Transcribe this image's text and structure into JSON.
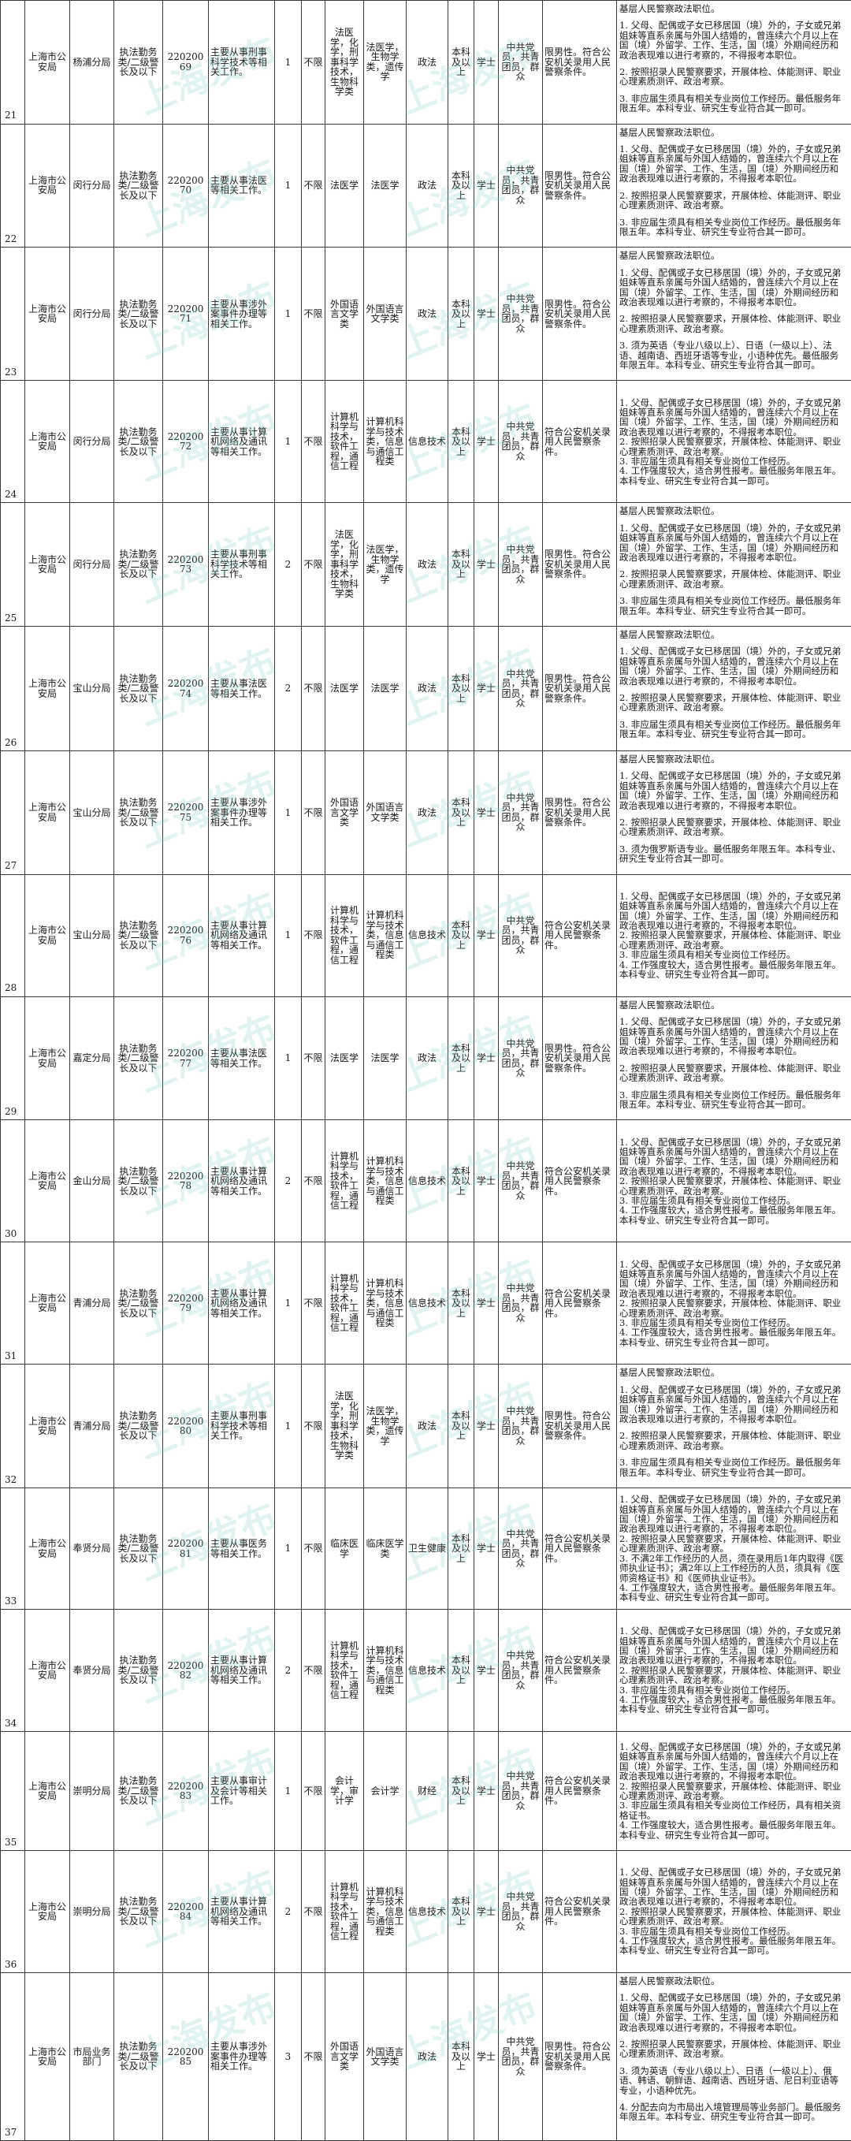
{
  "watermark": "上海发布",
  "rows": [
    {
      "no": "21",
      "agency": "上海市公安局",
      "unit": "杨浦分局",
      "category": "执法勤务类/二级警长及以下",
      "code": "22020069",
      "duty": "主要从事刑事科学技术等相关工作。",
      "count": "1",
      "limit": "不限",
      "major_ug": "法医学，化学，刑事科学技术，生物科学类",
      "major_pg": "法医学，生物学类，遗传学",
      "exam": "政法",
      "edu": "本科及以上",
      "degree": "学士",
      "politics": "中共党员，共青团员，群众",
      "other": "限男性。符合公安机关录用人民警察条件。",
      "notes": [
        "基层人民警察政法职位。",
        "1. 父母、配偶或子女已移居国（境）外的，子女或兄弟姐妹等直系亲属与外国人结婚的，曾连续六个月以上在国（境）外留学、工作、生活，国（境）外期间经历和政治表现难以进行考察的，不得报考本职位。",
        "2. 按照招录人民警察要求，开展体检、体能测评、职业心理素质测评、政治考察。",
        "3. 非应届生须具有相关专业岗位工作经历。最低服务年限五年。本科专业、研究生专业符合其一即可。"
      ]
    },
    {
      "no": "22",
      "agency": "上海市公安局",
      "unit": "闵行分局",
      "category": "执法勤务类/二级警长及以下",
      "code": "22020070",
      "duty": "主要从事法医等相关工作。",
      "count": "1",
      "limit": "不限",
      "major_ug": "法医学",
      "major_pg": "法医学",
      "exam": "政法",
      "edu": "本科及以上",
      "degree": "学士",
      "politics": "中共党员，共青团员，群众",
      "other": "限男性。符合公安机关录用人民警察条件。",
      "notes": [
        "基层人民警察政法职位。",
        "1. 父母、配偶或子女已移居国（境）外的，子女或兄弟姐妹等直系亲属与外国人结婚的，曾连续六个月以上在国（境）外留学、工作、生活，国（境）外期间经历和政治表现难以进行考察的，不得报考本职位。",
        "2. 按照招录人民警察要求，开展体检、体能测评、职业心理素质测评、政治考察。",
        "3. 非应届生须具有相关专业岗位工作经历。最低服务年限五年。本科专业、研究生专业符合其一即可。"
      ]
    },
    {
      "no": "23",
      "agency": "上海市公安局",
      "unit": "闵行分局",
      "category": "执法勤务类/二级警长及以下",
      "code": "22020071",
      "duty": "主要从事涉外案事件办理等相关工作。",
      "count": "1",
      "limit": "不限",
      "major_ug": "外国语言文学类",
      "major_pg": "外国语言文学类",
      "exam": "政法",
      "edu": "本科及以上",
      "degree": "学士",
      "politics": "中共党员，共青团员，群众",
      "other": "限男性。符合公安机关录用人民警察条件。",
      "notes": [
        "基层人民警察政法职位。",
        "1. 父母、配偶或子女已移居国（境）外的，子女或兄弟姐妹等直系亲属与外国人结婚的，曾连续六个月以上在国（境）外留学、工作、生活，国（境）外期间经历和政治表现难以进行考察的，不得报考本职位。",
        "2. 按照招录人民警察要求，开展体检、体能测评、职业心理素质测评、政治考察。",
        "3. 须为英语（专业八级以上）、日语（一级以上）、法语、越南语、西班牙语等专业，小语种优先。最低服务年限五年。本科专业、研究生专业符合其一即可。"
      ]
    },
    {
      "no": "24",
      "agency": "上海市公安局",
      "unit": "闵行分局",
      "category": "执法勤务类/二级警长及以下",
      "code": "22020072",
      "duty": "主要从事计算机网络及通讯等相关工作。",
      "count": "1",
      "limit": "不限",
      "major_ug": "计算机科学与技术，软件工程，通信工程",
      "major_pg": "计算机科学与技术类，信息与通信工程类",
      "exam": "信息技术",
      "edu": "本科及以上",
      "degree": "学士",
      "politics": "中共党员，共青团员，群众",
      "other": "符合公安机关录用人民警察条件。",
      "notes": [
        "1. 父母、配偶或子女已移居国（境）外的，子女或兄弟姐妹等直系亲属与外国人结婚的，曾连续六个月以上在国（境）外留学、工作、生活，国（境）外期间经历和政治表现难以进行考察的，不得报考本职位。",
        "2. 按照招录人民警察要求，开展体检、体能测评、职业心理素质测评、政治考察。",
        "3. 非应届生须具有相关专业岗位工作经历。",
        "4. 工作强度较大，适合男性报考。最低服务年限五年。本科专业、研究生专业符合其一即可。"
      ]
    },
    {
      "no": "25",
      "agency": "上海市公安局",
      "unit": "闵行分局",
      "category": "执法勤务类/二级警长及以下",
      "code": "22020073",
      "duty": "主要从事刑事科学技术等相关工作。",
      "count": "2",
      "limit": "不限",
      "major_ug": "法医学，化学，刑事科学技术，生物科学类",
      "major_pg": "法医学，生物学类，遗传学",
      "exam": "政法",
      "edu": "本科及以上",
      "degree": "学士",
      "politics": "中共党员，共青团员，群众",
      "other": "限男性。符合公安机关录用人民警察条件。",
      "notes": [
        "基层人民警察政法职位。",
        "1. 父母、配偶或子女已移居国（境）外的，子女或兄弟姐妹等直系亲属与外国人结婚的，曾连续六个月以上在国（境）外留学、工作、生活，国（境）外期间经历和政治表现难以进行考察的，不得报考本职位。",
        "2. 按照招录人民警察要求，开展体检、体能测评、职业心理素质测评、政治考察。",
        "3. 非应届生须具有相关专业岗位工作经历。最低服务年限五年。本科专业、研究生专业符合其一即可。"
      ]
    },
    {
      "no": "26",
      "agency": "上海市公安局",
      "unit": "宝山分局",
      "category": "执法勤务类/二级警长及以下",
      "code": "22020074",
      "duty": "主要从事法医等相关工作。",
      "count": "2",
      "limit": "不限",
      "major_ug": "法医学",
      "major_pg": "法医学",
      "exam": "政法",
      "edu": "本科及以上",
      "degree": "学士",
      "politics": "中共党员，共青团员，群众",
      "other": "限男性。符合公安机关录用人民警察条件。",
      "notes": [
        "基层人民警察政法职位。",
        "1. 父母、配偶或子女已移居国（境）外的，子女或兄弟姐妹等直系亲属与外国人结婚的，曾连续六个月以上在国（境）外留学、工作、生活，国（境）外期间经历和政治表现难以进行考察的，不得报考本职位。",
        "2. 按照招录人民警察要求，开展体检、体能测评、职业心理素质测评、政治考察。",
        "3. 非应届生须具有相关专业岗位工作经历。最低服务年限五年。本科专业、研究生专业符合其一即可。"
      ]
    },
    {
      "no": "27",
      "agency": "上海市公安局",
      "unit": "宝山分局",
      "category": "执法勤务类/二级警长及以下",
      "code": "22020075",
      "duty": "主要从事涉外案事件办理等相关工作。",
      "count": "1",
      "limit": "不限",
      "major_ug": "外国语言文学类",
      "major_pg": "外国语言文学类",
      "exam": "政法",
      "edu": "本科及以上",
      "degree": "学士",
      "politics": "中共党员，共青团员，群众",
      "other": "限男性。符合公安机关录用人民警察条件。",
      "notes": [
        "基层人民警察政法职位。",
        "1. 父母、配偶或子女已移居国（境）外的，子女或兄弟姐妹等直系亲属与外国人结婚的，曾连续六个月以上在国（境）外留学、工作、生活，国（境）外期间经历和政治表现难以进行考察的，不得报考本职位。",
        "2. 按照招录人民警察要求，开展体检、体能测评、职业心理素质测评、政治考察。",
        "3. 须为俄罗斯语专业。最低服务年限五年。本科专业、研究生专业符合其一即可。"
      ]
    },
    {
      "no": "28",
      "agency": "上海市公安局",
      "unit": "宝山分局",
      "category": "执法勤务类/二级警长及以下",
      "code": "22020076",
      "duty": "主要从事计算机网络及通讯等相关工作。",
      "count": "1",
      "limit": "不限",
      "major_ug": "计算机科学与技术，软件工程，通信工程",
      "major_pg": "计算机科学与技术类，信息与通信工程类",
      "exam": "信息技术",
      "edu": "本科及以上",
      "degree": "学士",
      "politics": "中共党员，共青团员，群众",
      "other": "符合公安机关录用人民警察条件。",
      "notes": [
        "1. 父母、配偶或子女已移居国（境）外的，子女或兄弟姐妹等直系亲属与外国人结婚的，曾连续六个月以上在国（境）外留学、工作、生活，国（境）外期间经历和政治表现难以进行考察的，不得报考本职位。",
        "2. 按照招录人民警察要求，开展体检、体能测评、职业心理素质测评、政治考察。",
        "3. 非应届生须具有相关专业岗位工作经历。",
        "4. 工作强度较大，适合男性报考。最低服务年限五年。本科专业、研究生专业符合其一即可。"
      ]
    },
    {
      "no": "29",
      "agency": "上海市公安局",
      "unit": "嘉定分局",
      "category": "执法勤务类/二级警长及以下",
      "code": "22020077",
      "duty": "主要从事法医等相关工作。",
      "count": "1",
      "limit": "不限",
      "major_ug": "法医学",
      "major_pg": "法医学",
      "exam": "政法",
      "edu": "本科及以上",
      "degree": "学士",
      "politics": "中共党员，共青团员，群众",
      "other": "限男性。符合公安机关录用人民警察条件。",
      "notes": [
        "基层人民警察政法职位。",
        "1. 父母、配偶或子女已移居国（境）外的，子女或兄弟姐妹等直系亲属与外国人结婚的，曾连续六个月以上在国（境）外留学、工作、生活，国（境）外期间经历和政治表现难以进行考察的，不得报考本职位。",
        "2. 按照招录人民警察要求，开展体检、体能测评、职业心理素质测评、政治考察。",
        "3. 非应届生须具有相关专业岗位工作经历。最低服务年限五年。本科专业、研究生专业符合其一即可。"
      ]
    },
    {
      "no": "30",
      "agency": "上海市公安局",
      "unit": "金山分局",
      "category": "执法勤务类/二级警长及以下",
      "code": "22020078",
      "duty": "主要从事计算机网络及通讯等相关工作。",
      "count": "2",
      "limit": "不限",
      "major_ug": "计算机科学与技术，软件工程，通信工程",
      "major_pg": "计算机科学与技术类，信息与通信工程类",
      "exam": "信息技术",
      "edu": "本科及以上",
      "degree": "学士",
      "politics": "中共党员，共青团员，群众",
      "other": "符合公安机关录用人民警察条件。",
      "notes": [
        "1. 父母、配偶或子女已移居国（境）外的，子女或兄弟姐妹等直系亲属与外国人结婚的，曾连续六个月以上在国（境）外留学、工作、生活，国（境）外期间经历和政治表现难以进行考察的，不得报考本职位。",
        "2. 按照招录人民警察要求，开展体检、体能测评、职业心理素质测评、政治考察。",
        "3. 非应届生须具有相关专业岗位工作经历。",
        "4. 工作强度较大，适合男性报考。最低服务年限五年。本科专业、研究生专业符合其一即可。"
      ]
    },
    {
      "no": "31",
      "agency": "上海市公安局",
      "unit": "青浦分局",
      "category": "执法勤务类/二级警长及以下",
      "code": "22020079",
      "duty": "主要从事计算机网络及通讯等相关工作。",
      "count": "1",
      "limit": "不限",
      "major_ug": "计算机科学与技术，软件工程，通信工程",
      "major_pg": "计算机科学与技术类，信息与通信工程类",
      "exam": "信息技术",
      "edu": "本科及以上",
      "degree": "学士",
      "politics": "中共党员，共青团员，群众",
      "other": "符合公安机关录用人民警察条件。",
      "notes": [
        "1. 父母、配偶或子女已移居国（境）外的，子女或兄弟姐妹等直系亲属与外国人结婚的，曾连续六个月以上在国（境）外留学、工作、生活，国（境）外期间经历和政治表现难以进行考察的，不得报考本职位。",
        "2. 按照招录人民警察要求，开展体检、体能测评、职业心理素质测评、政治考察。",
        "3. 非应届生须具有相关专业岗位工作经历。",
        "4. 工作强度较大，适合男性报考。最低服务年限五年。本科专业、研究生专业符合其一即可。"
      ]
    },
    {
      "no": "32",
      "agency": "上海市公安局",
      "unit": "青浦分局",
      "category": "执法勤务类/二级警长及以下",
      "code": "22020080",
      "duty": "主要从事刑事科学技术等相关工作。",
      "count": "1",
      "limit": "不限",
      "major_ug": "法医学，化学，刑事科学技术，生物科学类",
      "major_pg": "法医学，生物学类，遗传学",
      "exam": "政法",
      "edu": "本科及以上",
      "degree": "学士",
      "politics": "中共党员，共青团员，群众",
      "other": "限男性。符合公安机关录用人民警察条件。",
      "notes": [
        "基层人民警察政法职位。",
        "1. 父母、配偶或子女已移居国（境）外的，子女或兄弟姐妹等直系亲属与外国人结婚的，曾连续六个月以上在国（境）外留学、工作、生活，国（境）外期间经历和政治表现难以进行考察的，不得报考本职位。",
        "2. 按照招录人民警察要求，开展体检、体能测评、职业心理素质测评、政治考察。",
        "3. 非应届生须具有相关专业岗位工作经历。最低服务年限五年。本科专业、研究生专业符合其一即可。"
      ]
    },
    {
      "no": "33",
      "agency": "上海市公安局",
      "unit": "奉贤分局",
      "category": "执法勤务类/二级警长及以下",
      "code": "22020081",
      "duty": "主要从事医务等相关工作。",
      "count": "1",
      "limit": "不限",
      "major_ug": "临床医学",
      "major_pg": "临床医学类",
      "exam": "卫生健康",
      "edu": "本科及以上",
      "degree": "学士",
      "politics": "中共党员，共青团员，群众",
      "other": "符合公安机关录用人民警察条件。",
      "notes": [
        "1. 父母、配偶或子女已移居国（境）外的，子女或兄弟姐妹等直系亲属与外国人结婚的，曾连续六个月以上在国（境）外留学、工作、生活，国（境）外期间经历和政治表现难以进行考察的，不得报考本职位。",
        "2. 按照招录人民警察要求，开展体检、体能测评、职业心理素质测评、政治考察。",
        "3. 不满2年工作经历的人员，须在录用后1年内取得《医师执业证书》；满2年以上工作经历的人员，须具有《医师资格证书》和《医师执业证书》。",
        "4. 工作强度较大，适合男性报考。最低服务年限五年。本科专业、研究生专业符合其一即可。"
      ]
    },
    {
      "no": "34",
      "agency": "上海市公安局",
      "unit": "奉贤分局",
      "category": "执法勤务类/二级警长及以下",
      "code": "22020082",
      "duty": "主要从事计算机网络及通讯等相关工作。",
      "count": "2",
      "limit": "不限",
      "major_ug": "计算机科学与技术，软件工程，通信工程",
      "major_pg": "计算机科学与技术类，信息与通信工程类",
      "exam": "信息技术",
      "edu": "本科及以上",
      "degree": "学士",
      "politics": "中共党员，共青团员，群众",
      "other": "符合公安机关录用人民警察条件。",
      "notes": [
        "1. 父母、配偶或子女已移居国（境）外的，子女或兄弟姐妹等直系亲属与外国人结婚的，曾连续六个月以上在国（境）外留学、工作、生活，国（境）外期间经历和政治表现难以进行考察的，不得报考本职位。",
        "2. 按照招录人民警察要求，开展体检、体能测评、职业心理素质测评、政治考察。",
        "3. 非应届生须具有相关专业岗位工作经历。",
        "4. 工作强度较大，适合男性报考。最低服务年限五年。本科专业、研究生专业符合其一即可。"
      ]
    },
    {
      "no": "35",
      "agency": "上海市公安局",
      "unit": "崇明分局",
      "category": "执法勤务类/二级警长及以下",
      "code": "22020083",
      "duty": "主要从事审计及会计等相关工作。",
      "count": "1",
      "limit": "不限",
      "major_ug": "会计学，审计学",
      "major_pg": "会计学",
      "exam": "财经",
      "edu": "本科及以上",
      "degree": "学士",
      "politics": "中共党员，共青团员，群众",
      "other": "符合公安机关录用人民警察条件。",
      "notes": [
        "1. 父母、配偶或子女已移居国（境）外的，子女或兄弟姐妹等直系亲属与外国人结婚的，曾连续六个月以上在国（境）外留学、工作、生活，国（境）外期间经历和政治表现难以进行考察的，不得报考本职位。",
        "2. 按照招录人民警察要求，开展体检、体能测评、职业心理素质测评、政治考察。",
        "3. 非应届生须具有相关专业岗位工作经历，具有相关资格证书。",
        "4. 工作强度较大，适合男性报考。最低服务年限五年。本科专业、研究生专业符合其一即可。"
      ]
    },
    {
      "no": "36",
      "agency": "上海市公安局",
      "unit": "崇明分局",
      "category": "执法勤务类/二级警长及以下",
      "code": "22020084",
      "duty": "主要从事计算机网络及通讯等相关工作。",
      "count": "2",
      "limit": "不限",
      "major_ug": "计算机科学与技术，软件工程，通信工程",
      "major_pg": "计算机科学与技术类，信息与通信工程类",
      "exam": "信息技术",
      "edu": "本科及以上",
      "degree": "学士",
      "politics": "中共党员，共青团员，群众",
      "other": "符合公安机关录用人民警察条件。",
      "notes": [
        "1. 父母、配偶或子女已移居国（境）外的，子女或兄弟姐妹等直系亲属与外国人结婚的，曾连续六个月以上在国（境）外留学、工作、生活，国（境）外期间经历和政治表现难以进行考察的，不得报考本职位。",
        "2. 按照招录人民警察要求，开展体检、体能测评、职业心理素质测评、政治考察。",
        "3. 非应届生须具有相关专业岗位工作经历。",
        "4. 工作强度较大，适合男性报考。最低服务年限五年。本科专业、研究生专业符合其一即可。"
      ]
    },
    {
      "no": "37",
      "agency": "上海市公安局",
      "unit": "市局业务部门",
      "category": "执法勤务类/二级警长及以下",
      "code": "22020085",
      "duty": "主要从事涉外案事件办理等相关工作。",
      "count": "3",
      "limit": "不限",
      "major_ug": "外国语言文学类",
      "major_pg": "外国语言文学类",
      "exam": "政法",
      "edu": "本科及以上",
      "degree": "学士",
      "politics": "中共党员，共青团员，群众",
      "other": "限男性。符合公安机关录用人民警察条件。",
      "notes": [
        "基层人民警察政法职位。",
        "1. 父母、配偶或子女已移居国（境）外的，子女或兄弟姐妹等直系亲属与外国人结婚的，曾连续六个月以上在国（境）外留学、工作、生活，国（境）外期间经历和政治表现难以进行考察的，不得报考本职位。",
        "2. 按照招录人民警察要求，开展体检、体能测评、职业心理素质测评、政治考察。",
        "3. 须为英语（专业八级以上）、日语（一级以上）、俄语、韩语、朝鲜语、越南语、西班牙语、尼日利亚语等专业，小语种优先。",
        "4. 分配去向为市局出入境管理局等业务部门。最低服务年限五年。本科专业、研究生专业符合其一即可。"
      ]
    }
  ]
}
